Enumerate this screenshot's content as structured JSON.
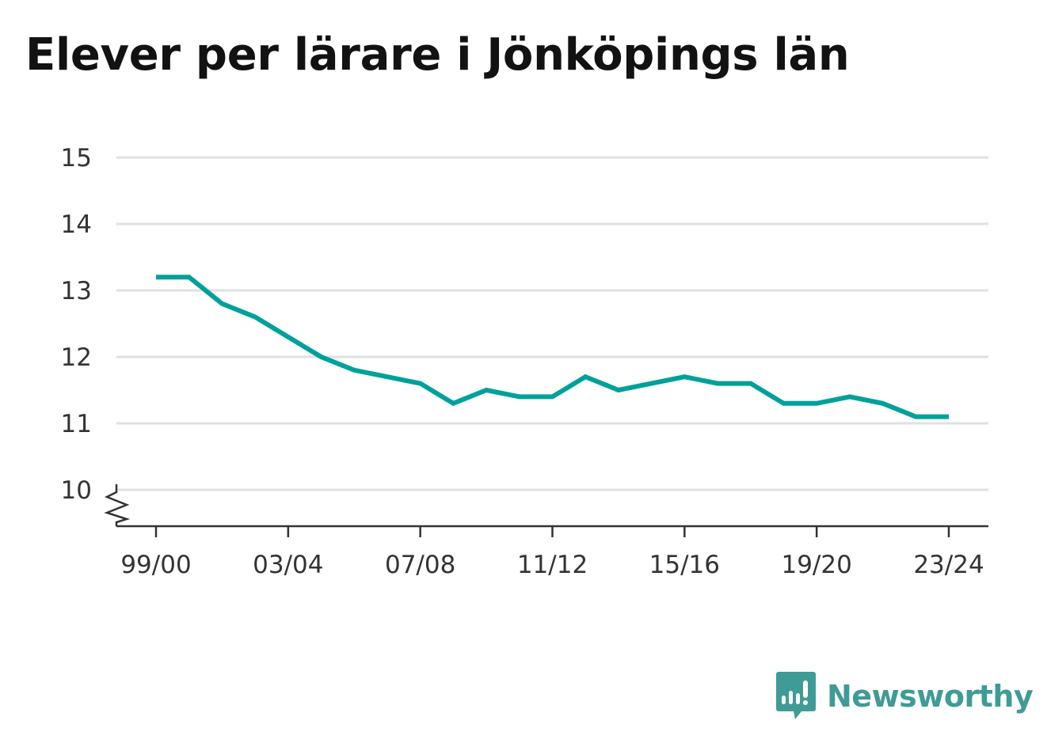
{
  "title": "Elever per lärare i Jönköpings län",
  "brand": {
    "name": "Newsworthy",
    "icon": "newsworthy-logo-icon",
    "color": "#3f9b96"
  },
  "chart_data": {
    "type": "line",
    "title": "Elever per lärare i Jönköpings län",
    "xlabel": "",
    "ylabel": "",
    "x": [
      "99/00",
      "00/01",
      "01/02",
      "02/03",
      "03/04",
      "04/05",
      "05/06",
      "06/07",
      "07/08",
      "08/09",
      "09/10",
      "10/11",
      "11/12",
      "12/13",
      "13/14",
      "14/15",
      "15/16",
      "16/17",
      "17/18",
      "18/19",
      "19/20",
      "20/21",
      "21/22",
      "22/23",
      "23/24"
    ],
    "x_tick_labels": [
      "99/00",
      "03/04",
      "07/08",
      "11/12",
      "15/16",
      "19/20",
      "23/24"
    ],
    "series": [
      {
        "color": "#00a19a",
        "values": [
          13.2,
          13.2,
          12.8,
          12.6,
          12.3,
          12.0,
          11.8,
          11.7,
          11.6,
          11.3,
          11.5,
          11.4,
          11.4,
          11.7,
          11.5,
          11.6,
          11.7,
          11.6,
          11.6,
          11.3,
          11.3,
          11.4,
          11.3,
          11.1,
          11.1
        ]
      }
    ],
    "y_ticks": [
      10,
      11,
      12,
      13,
      14,
      15
    ],
    "ylim": [
      10,
      15
    ],
    "axis_break": true,
    "grid": true,
    "legend": "none"
  }
}
